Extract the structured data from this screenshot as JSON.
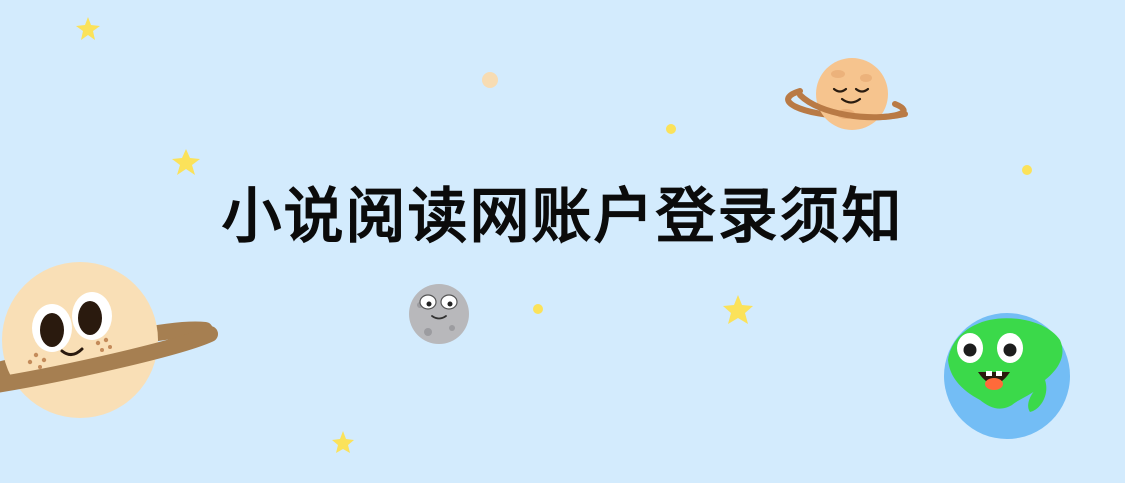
{
  "banner": {
    "title": "小说阅读网账户登录须知"
  },
  "colors": {
    "background": "#d3ebfd",
    "title_text": "#0b0b0b",
    "star_yellow": "#fbe25a",
    "planet_peach": "#f9dfb6",
    "planet_ring_brown": "#a67f51",
    "moon_gray": "#b7b7bb",
    "earth_blue": "#73bdf5",
    "earth_green": "#3bd94a"
  },
  "decorations": {
    "icons": [
      "star-icon",
      "dot-icon",
      "saturn-planet-icon",
      "ringed-planet-icon",
      "moon-icon",
      "earth-icon"
    ]
  }
}
